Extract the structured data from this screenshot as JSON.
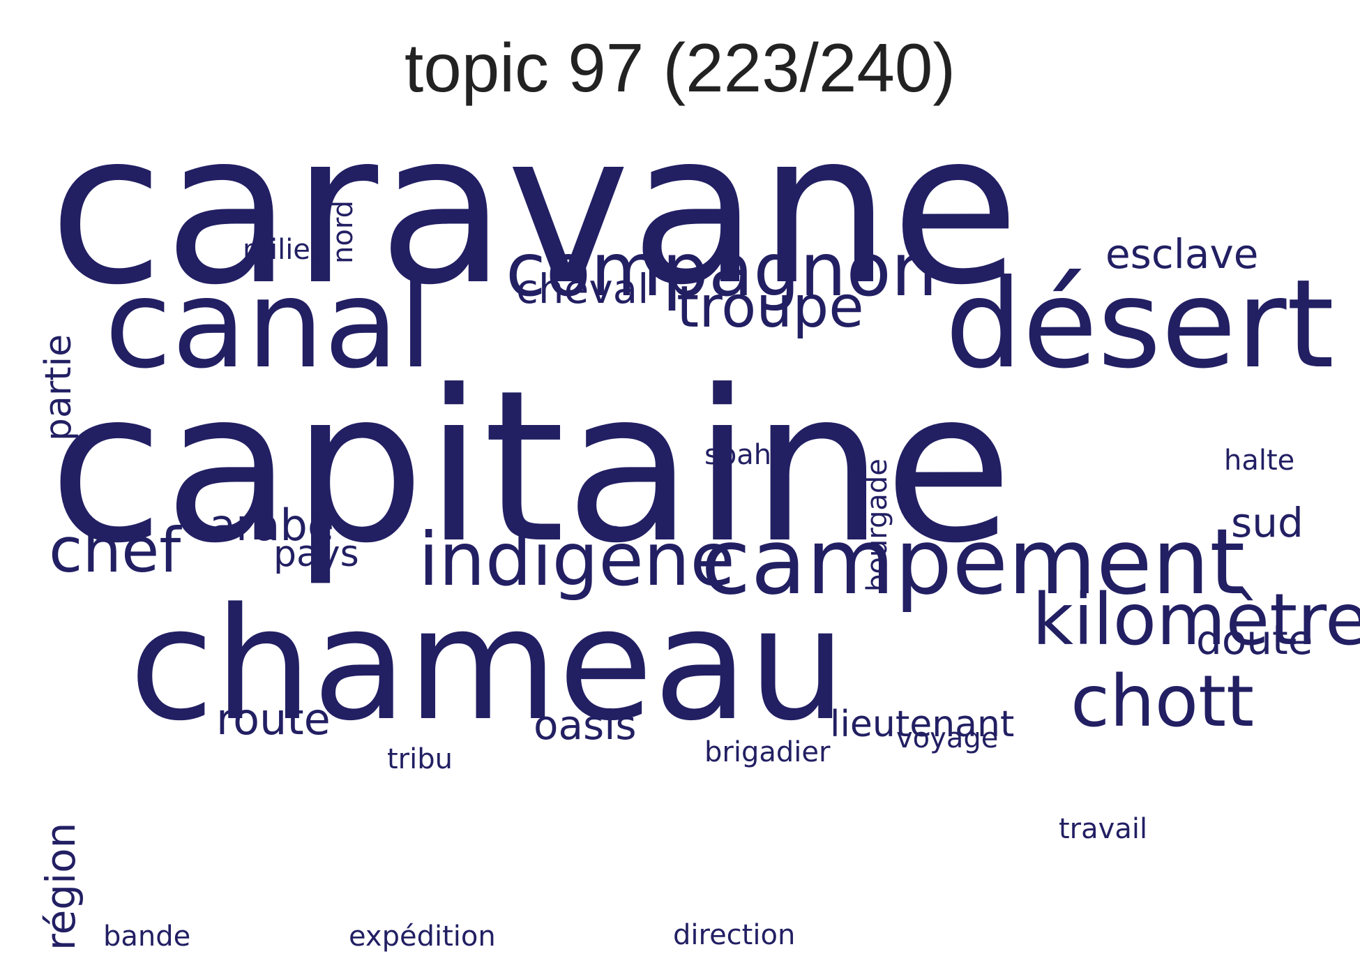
{
  "title": "topic 97 (223/240)",
  "word_color": "#221f63",
  "words": [
    {
      "text": "caravane",
      "weight": 1.0
    },
    {
      "text": "capitaine",
      "weight": 0.98
    },
    {
      "text": "chameau",
      "weight": 0.72
    },
    {
      "text": "canal",
      "weight": 0.56
    },
    {
      "text": "désert",
      "weight": 0.56
    },
    {
      "text": "campement",
      "weight": 0.42
    },
    {
      "text": "compagnon",
      "weight": 0.34
    },
    {
      "text": "indigène",
      "weight": 0.34
    },
    {
      "text": "kilomètre",
      "weight": 0.33
    },
    {
      "text": "chott",
      "weight": 0.33
    },
    {
      "text": "chef",
      "weight": 0.28
    },
    {
      "text": "troupe",
      "weight": 0.27
    },
    {
      "text": "arabe",
      "weight": 0.2
    },
    {
      "text": "route",
      "weight": 0.2
    },
    {
      "text": "esclave",
      "weight": 0.18
    },
    {
      "text": "doute",
      "weight": 0.18
    },
    {
      "text": "sud",
      "weight": 0.18
    },
    {
      "text": "cheval",
      "weight": 0.18
    },
    {
      "text": "oasis",
      "weight": 0.18
    },
    {
      "text": "région",
      "weight": 0.18
    },
    {
      "text": "partie",
      "weight": 0.17
    },
    {
      "text": "pays",
      "weight": 0.16
    },
    {
      "text": "lieutenant",
      "weight": 0.16
    },
    {
      "text": "milieu",
      "weight": 0.13
    },
    {
      "text": "nord",
      "weight": 0.13
    },
    {
      "text": "halte",
      "weight": 0.13
    },
    {
      "text": "spahi",
      "weight": 0.13
    },
    {
      "text": "brigadier",
      "weight": 0.13
    },
    {
      "text": "voyage",
      "weight": 0.13
    },
    {
      "text": "tribu",
      "weight": 0.13
    },
    {
      "text": "travail",
      "weight": 0.13
    },
    {
      "text": "bande",
      "weight": 0.13
    },
    {
      "text": "expédition",
      "weight": 0.13
    },
    {
      "text": "direction",
      "weight": 0.13
    },
    {
      "text": "bourgade",
      "weight": 0.13
    }
  ]
}
